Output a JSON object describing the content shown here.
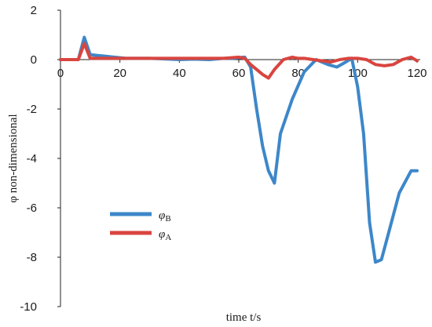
{
  "chart_data": {
    "type": "line",
    "xlabel": "time  t/s",
    "ylabel": "φ non-dimensional",
    "xlim": [
      0,
      120
    ],
    "ylim": [
      -10,
      2
    ],
    "xticks": [
      "0",
      "20",
      "40",
      "60",
      "80",
      "100",
      "120"
    ],
    "yticks": [
      "2",
      "0",
      "-2",
      "-4",
      "-6",
      "-8",
      "-10"
    ],
    "grid": false,
    "legend_position": "lower-left",
    "series": [
      {
        "name": "φB",
        "symbol": "φ",
        "subscript": "B",
        "color": "#3d87c9",
        "x": [
          0,
          2,
          4,
          6,
          8,
          10,
          14,
          18,
          22,
          26,
          30,
          35,
          40,
          45,
          50,
          55,
          58,
          60,
          62,
          64,
          66,
          68,
          70,
          72,
          74,
          78,
          82,
          86,
          90,
          93,
          96,
          98,
          100,
          102,
          104,
          106,
          108,
          110,
          114,
          118,
          120
        ],
        "y": [
          0,
          0,
          0,
          0,
          0.9,
          0.2,
          0.15,
          0.1,
          0.05,
          0.05,
          0.05,
          0.03,
          0,
          0.02,
          0,
          0.05,
          0.05,
          0.08,
          0.1,
          -0.3,
          -2,
          -3.5,
          -4.5,
          -5,
          -3,
          -1.6,
          -0.5,
          0,
          -0.2,
          -0.3,
          -0.1,
          0.05,
          -1.1,
          -3,
          -6.6,
          -8.2,
          -8.1,
          -7.2,
          -5.4,
          -4.5,
          -4.5
        ]
      },
      {
        "name": "φA",
        "symbol": "φ",
        "subscript": "A",
        "color": "#d9453f",
        "x": [
          0,
          2,
          4,
          6,
          8,
          10,
          15,
          20,
          25,
          30,
          35,
          40,
          45,
          50,
          55,
          60,
          62,
          64,
          66,
          68,
          70,
          72,
          75,
          78,
          80,
          82,
          85,
          88,
          91,
          94,
          97,
          100,
          103,
          106,
          109,
          112,
          115,
          118,
          120
        ],
        "y": [
          0,
          0,
          0,
          0,
          0.65,
          0.05,
          0.05,
          0.05,
          0.05,
          0.05,
          0.05,
          0.05,
          0.05,
          0.05,
          0.05,
          0.1,
          0.05,
          -0.2,
          -0.4,
          -0.6,
          -0.75,
          -0.4,
          0,
          0.1,
          0.05,
          0.05,
          0,
          -0.05,
          -0.1,
          0,
          0.05,
          0.05,
          0,
          -0.2,
          -0.25,
          -0.2,
          0,
          0.1,
          -0.05
        ]
      }
    ]
  }
}
